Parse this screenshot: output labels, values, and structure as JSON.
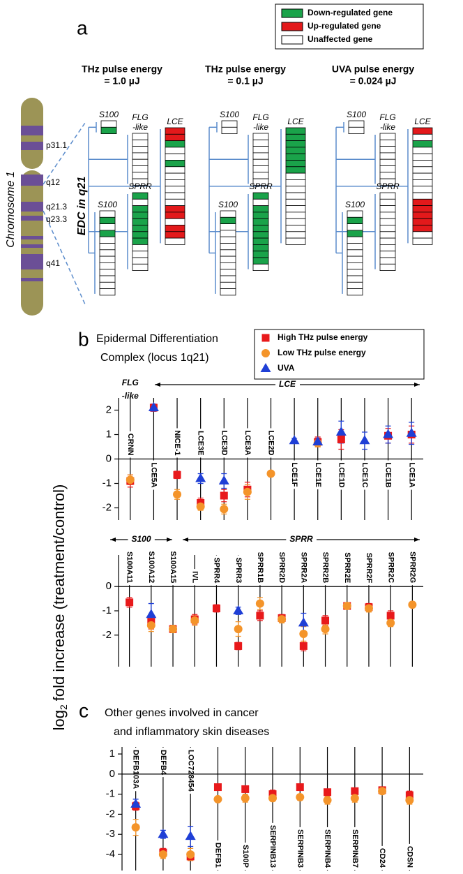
{
  "panel_a": {
    "label": "a",
    "legend": [
      {
        "label": "Down-regulated gene",
        "color": "#1aa34a"
      },
      {
        "label": "Up-regulated gene",
        "color": "#e3191b"
      },
      {
        "label": "Unaffected gene",
        "color": "#ffffff"
      }
    ],
    "chromosome": "Chromosome 1",
    "bands": [
      "p31.1",
      "q12",
      "q21.3",
      "q23.3",
      "q41"
    ],
    "region": "EDC in q21",
    "columns": [
      {
        "title": [
          "THz pulse energy",
          "= 1.0 µJ"
        ],
        "groups": [
          {
            "label": [
              "S100"
            ],
            "cells": [
              "#ffffff",
              "#1aa34a"
            ]
          },
          {
            "label": [
              "FLG",
              "-like"
            ],
            "cells": [
              "#ffffff",
              "#ffffff",
              "#ffffff",
              "#ffffff",
              "#ffffff",
              "#ffffff",
              "#ffffff",
              "#ffffff"
            ]
          },
          {
            "label": [
              "LCE"
            ],
            "cells": [
              "#e3191b",
              "#e3191b",
              "#1aa34a",
              "#ffffff",
              "#ffffff",
              "#1aa34a",
              "#ffffff",
              "#ffffff",
              "#ffffff",
              "#ffffff",
              "#ffffff",
              "#ffffff",
              "#e3191b",
              "#e3191b",
              "#ffffff",
              "#e3191b",
              "#e3191b",
              "#ffffff"
            ]
          },
          {
            "label": [
              "SPRR"
            ],
            "cells": [
              "#1aa34a",
              "#ffffff",
              "#1aa34a",
              "#1aa34a",
              "#1aa34a",
              "#1aa34a",
              "#1aa34a",
              "#1aa34a",
              "#ffffff",
              "#ffffff",
              "#ffffff",
              "#ffffff"
            ]
          },
          {
            "label": [
              "S100"
            ],
            "cells": [
              "#ffffff",
              "#1aa34a",
              "#ffffff",
              "#1aa34a",
              "#ffffff",
              "#ffffff",
              "#ffffff",
              "#ffffff",
              "#ffffff",
              "#ffffff",
              "#ffffff",
              "#ffffff",
              "#ffffff"
            ]
          }
        ]
      },
      {
        "title": [
          "THz pulse energy",
          "= 0.1 µJ"
        ],
        "groups": [
          {
            "label": [
              "S100"
            ],
            "cells": [
              "#ffffff",
              "#ffffff"
            ]
          },
          {
            "label": [
              "FLG",
              "-like"
            ],
            "cells": [
              "#ffffff",
              "#ffffff",
              "#ffffff",
              "#ffffff",
              "#ffffff",
              "#ffffff",
              "#ffffff",
              "#ffffff"
            ]
          },
          {
            "label": [
              "LCE"
            ],
            "cells": [
              "#1aa34a",
              "#1aa34a",
              "#1aa34a",
              "#1aa34a",
              "#1aa34a",
              "#1aa34a",
              "#1aa34a",
              "#ffffff",
              "#ffffff",
              "#ffffff",
              "#ffffff",
              "#ffffff",
              "#ffffff",
              "#ffffff",
              "#ffffff",
              "#ffffff",
              "#ffffff",
              "#ffffff"
            ]
          },
          {
            "label": [
              "SPRR"
            ],
            "cells": [
              "#1aa34a",
              "#ffffff",
              "#1aa34a",
              "#1aa34a",
              "#1aa34a",
              "#1aa34a",
              "#1aa34a",
              "#1aa34a",
              "#1aa34a",
              "#1aa34a",
              "#1aa34a",
              "#ffffff"
            ]
          },
          {
            "label": [
              "S100"
            ],
            "cells": [
              "#ffffff",
              "#1aa34a",
              "#ffffff",
              "#ffffff",
              "#ffffff",
              "#ffffff",
              "#ffffff",
              "#ffffff",
              "#ffffff",
              "#ffffff",
              "#ffffff",
              "#ffffff",
              "#ffffff"
            ]
          }
        ]
      },
      {
        "title": [
          "UVA pulse energy",
          "= 0.024 µJ"
        ],
        "groups": [
          {
            "label": [
              "S100"
            ],
            "cells": [
              "#ffffff",
              "#ffffff"
            ]
          },
          {
            "label": [
              "FLG",
              "-like"
            ],
            "cells": [
              "#ffffff",
              "#ffffff",
              "#ffffff",
              "#ffffff",
              "#ffffff",
              "#ffffff",
              "#ffffff",
              "#ffffff"
            ]
          },
          {
            "label": [
              "LCE"
            ],
            "cells": [
              "#e3191b",
              "#ffffff",
              "#1aa34a",
              "#ffffff",
              "#ffffff",
              "#ffffff",
              "#ffffff",
              "#ffffff",
              "#ffffff",
              "#ffffff",
              "#ffffff",
              "#e3191b",
              "#e3191b",
              "#e3191b",
              "#e3191b",
              "#e3191b",
              "#ffffff",
              "#ffffff"
            ]
          },
          {
            "label": [
              "SPRR"
            ],
            "cells": [
              "#ffffff",
              "#ffffff",
              "#ffffff",
              "#ffffff",
              "#ffffff",
              "#ffffff",
              "#ffffff",
              "#ffffff",
              "#ffffff",
              "#ffffff",
              "#ffffff",
              "#ffffff"
            ]
          },
          {
            "label": [
              "S100"
            ],
            "cells": [
              "#ffffff",
              "#1aa34a",
              "#ffffff",
              "#1aa34a",
              "#ffffff",
              "#ffffff",
              "#ffffff",
              "#ffffff",
              "#ffffff",
              "#ffffff",
              "#ffffff",
              "#ffffff",
              "#ffffff"
            ]
          }
        ]
      }
    ]
  },
  "chart_data": [
    {
      "type": "dot",
      "panel_label": "b",
      "title": [
        "Epidermal Differentiation",
        "Complex (locus 1q21)"
      ],
      "ylabel": [
        "log",
        "2",
        "fold increase (treatment/control)"
      ],
      "legend": "top-right",
      "groups": [
        {
          "label": [
            "FLG",
            "-like"
          ]
        },
        {
          "label": [
            "LCE"
          ]
        }
      ],
      "categories": [
        "CRNN",
        "LCE5A",
        "NICE-1",
        "LCE3E",
        "LCE3D",
        "LCE3A",
        "LCE2D",
        "LCE1F",
        "LCE1E",
        "LCE1D",
        "LCE1C",
        "LCE1B",
        "LCE1A"
      ],
      "ylim": [
        -2.5,
        2.5
      ],
      "yticks": [
        -2,
        -1,
        0,
        1,
        2
      ],
      "series": [
        {
          "name": "High THz pulse energy",
          "color": "#e8191b",
          "marker": "square",
          "values": [
            -0.9,
            2.1,
            -0.65,
            -1.8,
            -1.5,
            -1.25,
            null,
            null,
            0.7,
            0.8,
            null,
            0.95,
            1.0
          ],
          "errors": [
            0.25,
            0.1,
            0.15,
            0.2,
            0.25,
            0.3,
            null,
            null,
            0.2,
            0.4,
            null,
            0.3,
            0.35
          ]
        },
        {
          "name": "Low THz pulse energy",
          "color": "#f4942a",
          "marker": "circle",
          "values": [
            -0.85,
            null,
            -1.45,
            -1.95,
            -2.05,
            -1.35,
            -0.6,
            null,
            0.65,
            null,
            null,
            null,
            null
          ],
          "errors": [
            0.2,
            null,
            0.2,
            0.15,
            0.2,
            0.3,
            0.1,
            null,
            0.15,
            null,
            null,
            null,
            null
          ]
        },
        {
          "name": "UVA",
          "color": "#1f3fd6",
          "marker": "triangle",
          "values": [
            null,
            2.1,
            null,
            -0.8,
            -0.9,
            null,
            null,
            0.75,
            0.7,
            1.1,
            0.75,
            1.0,
            1.05
          ],
          "errors": [
            null,
            0.15,
            null,
            0.2,
            0.3,
            null,
            null,
            0.1,
            0.15,
            0.45,
            0.35,
            0.35,
            0.45
          ]
        }
      ]
    },
    {
      "type": "dot",
      "groups": [
        {
          "label": [
            "S100"
          ]
        },
        {
          "label": [
            "SPRR"
          ]
        }
      ],
      "categories": [
        "S100A11",
        "S100A12",
        "S100A15",
        "IVL",
        "SPRR4",
        "SPRR3",
        "SPRR1B",
        "SPRR2D",
        "SPRR2A",
        "SPRR2B",
        "SPRR2E",
        "SPRR2F",
        "SPRR2C",
        "SPRR2G"
      ],
      "ylim": [
        -3.3,
        1.3
      ],
      "yticks": [
        -2,
        -1,
        0
      ],
      "series": [
        {
          "name": "High THz pulse energy",
          "color": "#e8191b",
          "marker": "square",
          "values": [
            -0.65,
            -1.45,
            -1.75,
            -1.35,
            -0.9,
            -2.45,
            -1.2,
            -1.3,
            -2.45,
            -1.4,
            -0.8,
            -0.85,
            -1.2,
            null
          ],
          "errors": [
            0.2,
            0.3,
            0.15,
            0.2,
            0.15,
            0.15,
            0.2,
            0.15,
            0.2,
            0.2,
            0.1,
            0.15,
            0.2,
            null
          ]
        },
        {
          "name": "Low THz pulse energy",
          "color": "#f4942a",
          "marker": "circle",
          "values": [
            null,
            -1.6,
            -1.75,
            -1.4,
            null,
            -1.75,
            -0.7,
            -1.35,
            -1.95,
            -1.75,
            -0.8,
            -0.9,
            -1.5,
            -0.75
          ],
          "errors": [
            null,
            0.25,
            0.15,
            0.2,
            null,
            0.3,
            0.25,
            0.15,
            0.3,
            0.2,
            0.1,
            0.15,
            0.15,
            0.1
          ]
        },
        {
          "name": "UVA",
          "color": "#1f3fd6",
          "marker": "triangle",
          "values": [
            null,
            -1.15,
            null,
            null,
            null,
            -1.0,
            null,
            null,
            -1.5,
            null,
            null,
            null,
            null,
            null
          ],
          "errors": [
            null,
            0.45,
            null,
            null,
            null,
            0.15,
            null,
            null,
            0.4,
            null,
            null,
            null,
            null,
            null
          ]
        }
      ]
    },
    {
      "type": "dot",
      "panel_label": "c",
      "title": [
        "Other genes involved in cancer",
        "and inflammatory skin diseases"
      ],
      "categories": [
        "DEFB103A",
        "DEFB4",
        "LOC728454",
        "DEFB1",
        "S100P",
        "SERPINB13",
        "SERPINB3",
        "SERPINB4",
        "SERPINB7",
        "CD24",
        "CDSN"
      ],
      "ylim": [
        -4.8,
        1.35
      ],
      "yticks": [
        -4,
        -3,
        -2,
        -1,
        0,
        1
      ],
      "series": [
        {
          "name": "High THz pulse energy",
          "color": "#e8191b",
          "marker": "square",
          "values": [
            -1.6,
            -3.9,
            -4.1,
            -0.65,
            -0.75,
            -1.0,
            -0.65,
            -0.9,
            -0.85,
            -0.8,
            -1.05
          ],
          "errors": [
            0.2,
            0.2,
            0.2,
            0.1,
            0.15,
            0.2,
            0.1,
            0.15,
            0.15,
            0.15,
            0.2
          ]
        },
        {
          "name": "Low THz pulse energy",
          "color": "#f4942a",
          "marker": "circle",
          "values": [
            -2.65,
            -4.0,
            -4.0,
            -1.25,
            -1.2,
            -1.2,
            -1.15,
            -1.3,
            -1.2,
            -0.85,
            -1.3
          ],
          "errors": [
            0.4,
            0.2,
            0.3,
            0.1,
            0.2,
            0.15,
            0.15,
            0.2,
            0.2,
            0.15,
            0.2
          ]
        },
        {
          "name": "UVA",
          "color": "#1f3fd6",
          "marker": "triangle",
          "values": [
            -1.5,
            -3.0,
            -3.1,
            null,
            null,
            null,
            null,
            null,
            null,
            null,
            null
          ],
          "errors": [
            0.25,
            0.2,
            0.5,
            null,
            null,
            null,
            null,
            null,
            null,
            null,
            null
          ]
        }
      ]
    }
  ]
}
